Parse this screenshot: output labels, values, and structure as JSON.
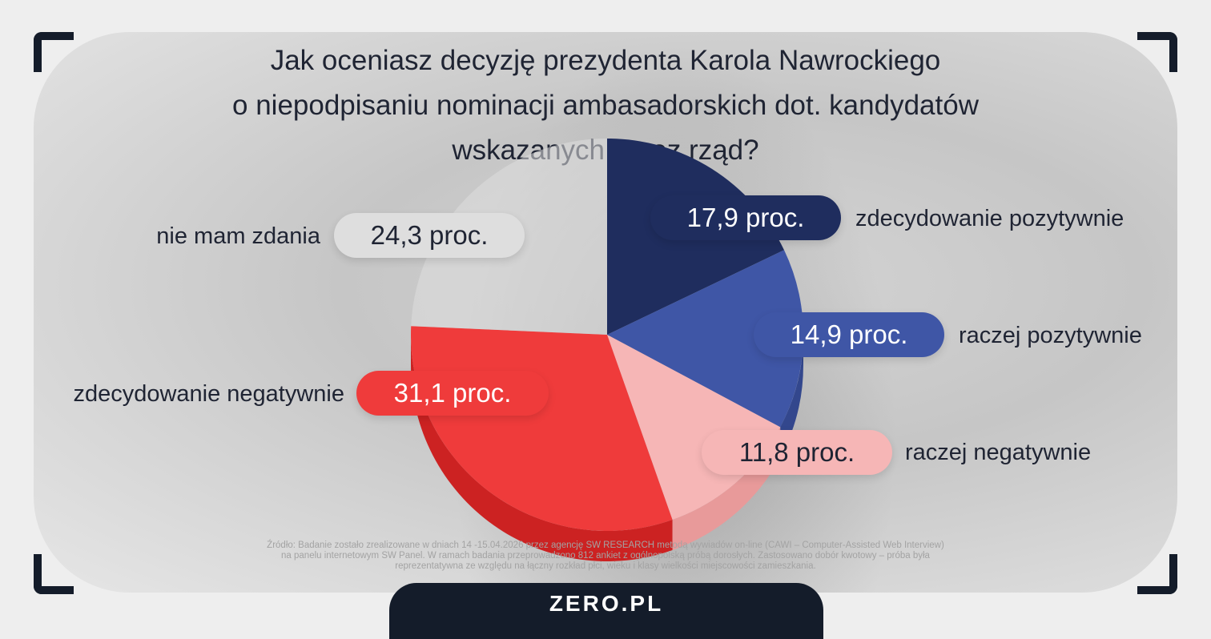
{
  "title_lines": [
    "Jak oceniasz decyzję prezydenta Karola Nawrockiego",
    "o niepodpisaniu nominacji ambasadorskich dot. kandydatów",
    "wskazanych przez rząd?"
  ],
  "chart_data": {
    "type": "pie",
    "unit": "proc.",
    "slices": [
      {
        "label": "zdecydowanie pozytywnie",
        "value": 17.9,
        "display": "17,9 proc.",
        "color": "#1f2d5e",
        "side": "#182450",
        "text_color": "#ffffff"
      },
      {
        "label": "raczej pozytywnie",
        "value": 14.9,
        "display": "14,9 proc.",
        "color": "#3f56a6",
        "side": "#33478d",
        "text_color": "#ffffff"
      },
      {
        "label": "raczej negatywnie",
        "value": 11.8,
        "display": "11,8 proc.",
        "color": "#f6b6b6",
        "side": "#e89a9a",
        "text_color": "#1f2433"
      },
      {
        "label": "zdecydowanie negatywnie",
        "value": 31.1,
        "display": "31,1 proc.",
        "color": "#ef3b3b",
        "side": "#cc2222",
        "text_color": "#ffffff"
      },
      {
        "label": "nie mam zdania",
        "value": 24.3,
        "display": "24,3 proc.",
        "color": "#dedede",
        "side": "#c4c4c4",
        "text_color": "#1f2433"
      }
    ]
  },
  "source_lines": [
    "Źródło: Badanie zostało zrealizowane w dniach 14 -15.04.2026 przez agencję SW RESEARCH metodą wywiadów on-line (CAWI – Computer-Assisted Web Interview)",
    "na panelu internetowym SW Panel. W ramach badania przeprowadzono 812 ankiet z ogólnopolską próbą dorosłych. Zastosowano dobór kwotowy – próba była",
    "reprezentatywna ze względu na łączny rozkład płci, wieku i klasy wielkości miejscowości zamieszkania."
  ],
  "logo": "ZERO.PL"
}
